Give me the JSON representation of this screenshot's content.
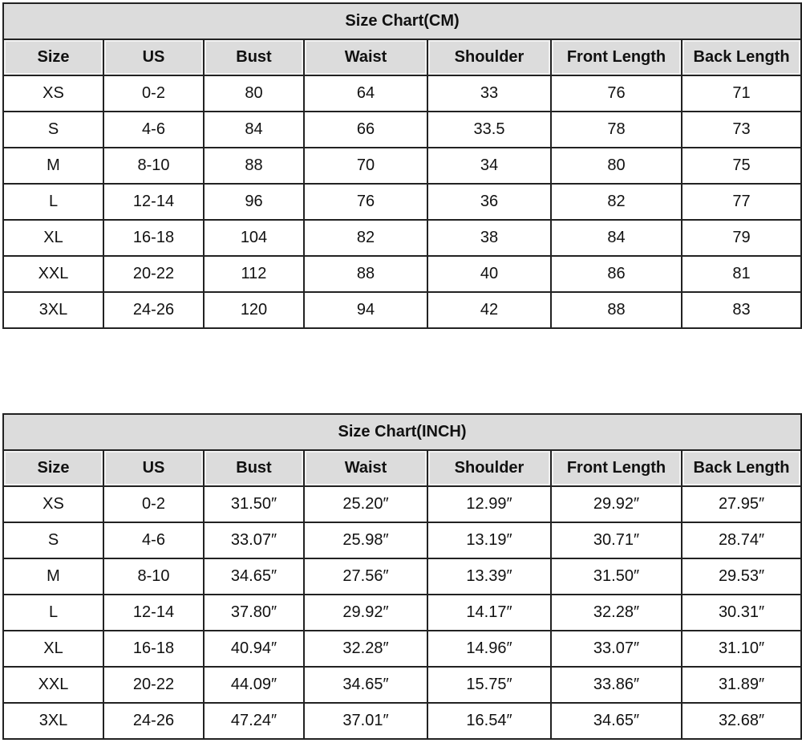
{
  "chart_data": [
    {
      "type": "table",
      "title": "Size Chart(CM)",
      "columns": [
        "Size",
        "US",
        "Bust",
        "Waist",
        "Shoulder",
        "Front Length",
        "Back Length"
      ],
      "rows": [
        [
          "XS",
          "0-2",
          "80",
          "64",
          "33",
          "76",
          "71"
        ],
        [
          "S",
          "4-6",
          "84",
          "66",
          "33.5",
          "78",
          "73"
        ],
        [
          "M",
          "8-10",
          "88",
          "70",
          "34",
          "80",
          "75"
        ],
        [
          "L",
          "12-14",
          "96",
          "76",
          "36",
          "82",
          "77"
        ],
        [
          "XL",
          "16-18",
          "104",
          "82",
          "38",
          "84",
          "79"
        ],
        [
          "XXL",
          "20-22",
          "112",
          "88",
          "40",
          "86",
          "81"
        ],
        [
          "3XL",
          "24-26",
          "120",
          "94",
          "42",
          "88",
          "83"
        ]
      ]
    },
    {
      "type": "table",
      "title": "Size Chart(INCH)",
      "columns": [
        "Size",
        "US",
        "Bust",
        "Waist",
        "Shoulder",
        "Front Length",
        "Back Length"
      ],
      "rows": [
        [
          "XS",
          "0-2",
          "31.50″",
          "25.20″",
          "12.99″",
          "29.92″",
          "27.95″"
        ],
        [
          "S",
          "4-6",
          "33.07″",
          "25.98″",
          "13.19″",
          "30.71″",
          "28.74″"
        ],
        [
          "M",
          "8-10",
          "34.65″",
          "27.56″",
          "13.39″",
          "31.50″",
          "29.53″"
        ],
        [
          "L",
          "12-14",
          "37.80″",
          "29.92″",
          "14.17″",
          "32.28″",
          "30.31″"
        ],
        [
          "XL",
          "16-18",
          "40.94″",
          "32.28″",
          "14.96″",
          "33.07″",
          "31.10″"
        ],
        [
          "XXL",
          "20-22",
          "44.09″",
          "34.65″",
          "15.75″",
          "33.86″",
          "31.89″"
        ],
        [
          "3XL",
          "24-26",
          "47.24″",
          "37.01″",
          "16.54″",
          "34.65″",
          "32.68″"
        ]
      ]
    }
  ]
}
